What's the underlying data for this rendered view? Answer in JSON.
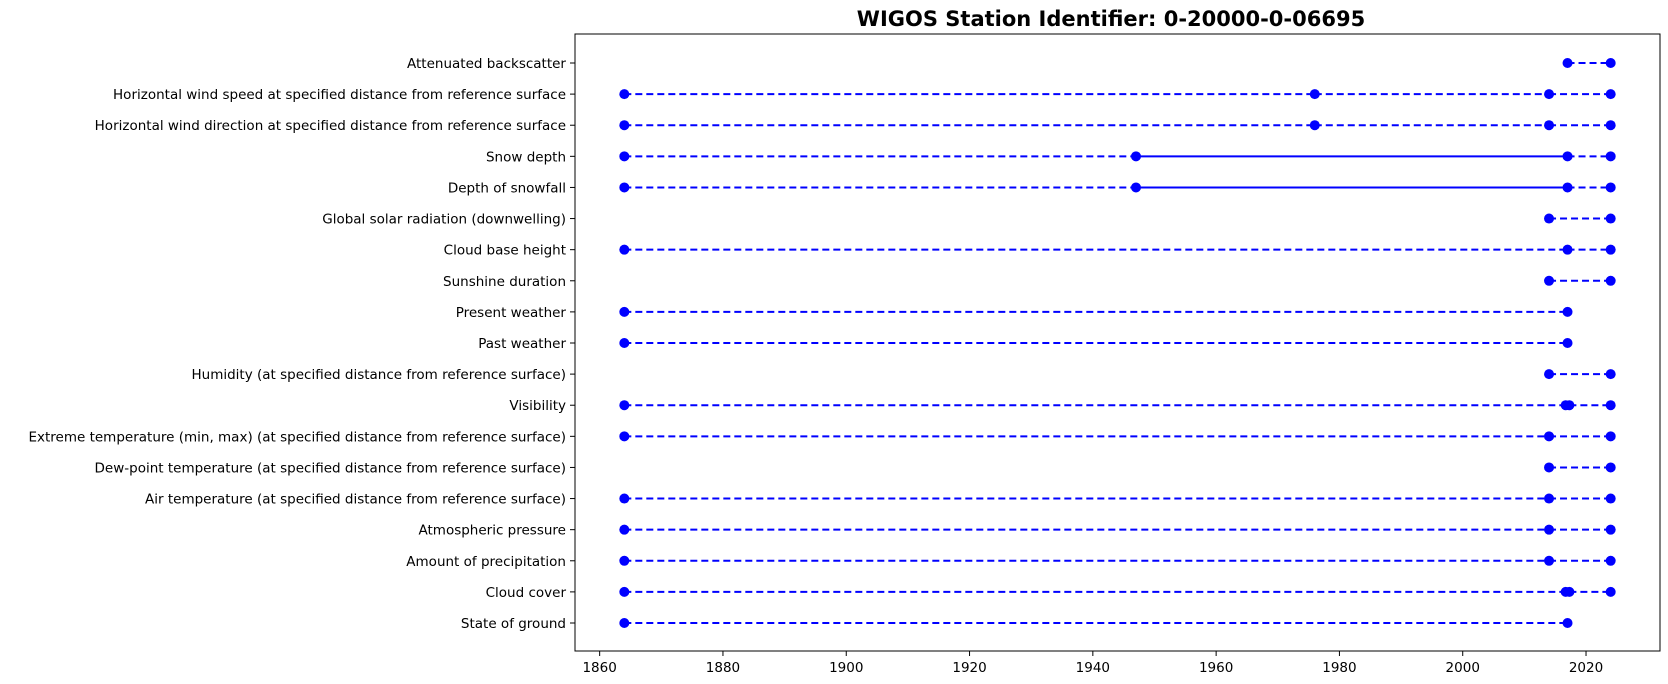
{
  "chart_data": {
    "type": "timeline",
    "title": "WIGOS Station Identifier: 0-20000-0-06695",
    "xlabel": "",
    "ylabel": "",
    "xlim": [
      1856,
      2032
    ],
    "xticks": [
      "1860",
      "1880",
      "1900",
      "1920",
      "1940",
      "1960",
      "1980",
      "2000",
      "2020"
    ],
    "grid": false,
    "color": "#0000ff",
    "rows": [
      {
        "label": "State of ground",
        "points": [
          1864,
          2017
        ],
        "solid": []
      },
      {
        "label": "Cloud cover",
        "points": [
          1864,
          2016.7,
          2017.3,
          2024
        ],
        "solid": []
      },
      {
        "label": "Amount of precipitation",
        "points": [
          1864,
          2014,
          2024
        ],
        "solid": []
      },
      {
        "label": "Atmospheric pressure",
        "points": [
          1864,
          2014,
          2024
        ],
        "solid": []
      },
      {
        "label": "Air temperature (at specified distance from reference surface)",
        "points": [
          1864,
          2014,
          2024
        ],
        "solid": []
      },
      {
        "label": "Dew-point temperature (at specified distance from reference surface)",
        "points": [
          2014,
          2024
        ],
        "solid": []
      },
      {
        "label": "Extreme temperature (min, max) (at specified distance from reference surface)",
        "points": [
          1864,
          2014,
          2024
        ],
        "solid": []
      },
      {
        "label": "Visibility",
        "points": [
          1864,
          2016.7,
          2017.3,
          2024
        ],
        "solid": []
      },
      {
        "label": "Humidity (at specified distance from reference surface)",
        "points": [
          2014,
          2024
        ],
        "solid": []
      },
      {
        "label": "Past weather",
        "points": [
          1864,
          2017
        ],
        "solid": []
      },
      {
        "label": "Present weather",
        "points": [
          1864,
          2017
        ],
        "solid": []
      },
      {
        "label": "Sunshine duration",
        "points": [
          2014,
          2024
        ],
        "solid": []
      },
      {
        "label": "Cloud base height",
        "points": [
          1864,
          2017,
          2024
        ],
        "solid": []
      },
      {
        "label": "Global solar radiation (downwelling)",
        "points": [
          2014,
          2024
        ],
        "solid": []
      },
      {
        "label": "Depth of snowfall",
        "points": [
          1864,
          1947,
          2017,
          2024
        ],
        "solid": [
          [
            1947,
            2017
          ]
        ]
      },
      {
        "label": "Snow depth",
        "points": [
          1864,
          1947,
          2017,
          2024
        ],
        "solid": [
          [
            1947,
            2017
          ]
        ]
      },
      {
        "label": "Horizontal wind direction at specified distance from reference surface",
        "points": [
          1864,
          1976,
          2014,
          2024
        ],
        "solid": []
      },
      {
        "label": "Horizontal wind speed at specified distance from reference surface",
        "points": [
          1864,
          1976,
          2014,
          2024
        ],
        "solid": []
      },
      {
        "label": "Attenuated backscatter",
        "points": [
          2017,
          2024
        ],
        "solid": []
      }
    ]
  }
}
